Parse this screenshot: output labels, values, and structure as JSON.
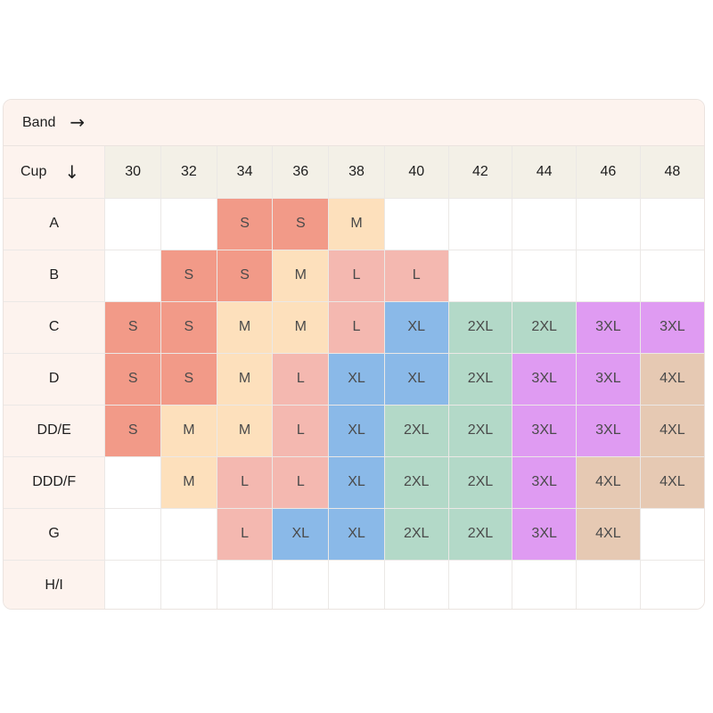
{
  "header": {
    "band_label": "Band",
    "band_arrow": "→",
    "cup_label": "Cup",
    "cup_arrow": "↓"
  },
  "bands": [
    "30",
    "32",
    "34",
    "36",
    "38",
    "40",
    "42",
    "44",
    "46",
    "48"
  ],
  "cups": [
    "A",
    "B",
    "C",
    "D",
    "DD/E",
    "DDD/F",
    "G",
    "H/I"
  ],
  "sizes": [
    [
      "",
      "",
      "S",
      "S",
      "M",
      "",
      "",
      "",
      "",
      ""
    ],
    [
      "",
      "S",
      "S",
      "M",
      "L",
      "L",
      "",
      "",
      "",
      ""
    ],
    [
      "S",
      "S",
      "M",
      "M",
      "L",
      "XL",
      "2XL",
      "2XL",
      "3XL",
      "3XL"
    ],
    [
      "S",
      "S",
      "M",
      "L",
      "XL",
      "XL",
      "2XL",
      "3XL",
      "3XL",
      "4XL"
    ],
    [
      "S",
      "M",
      "M",
      "L",
      "XL",
      "2XL",
      "2XL",
      "3XL",
      "3XL",
      "4XL"
    ],
    [
      "",
      "M",
      "L",
      "L",
      "XL",
      "2XL",
      "2XL",
      "3XL",
      "4XL",
      "4XL"
    ],
    [
      "",
      "",
      "L",
      "XL",
      "XL",
      "2XL",
      "2XL",
      "3XL",
      "4XL",
      ""
    ],
    [
      "",
      "",
      "",
      "",
      "",
      "",
      "",
      "",
      "",
      ""
    ]
  ],
  "size_colors": {
    "S": "#f29a88",
    "M": "#fde0bc",
    "L": "#f4b8b0",
    "XL": "#8ab9e8",
    "2XL": "#b3d9c8",
    "3XL": "#df9bf2",
    "4XL": "#e6c9b3"
  }
}
